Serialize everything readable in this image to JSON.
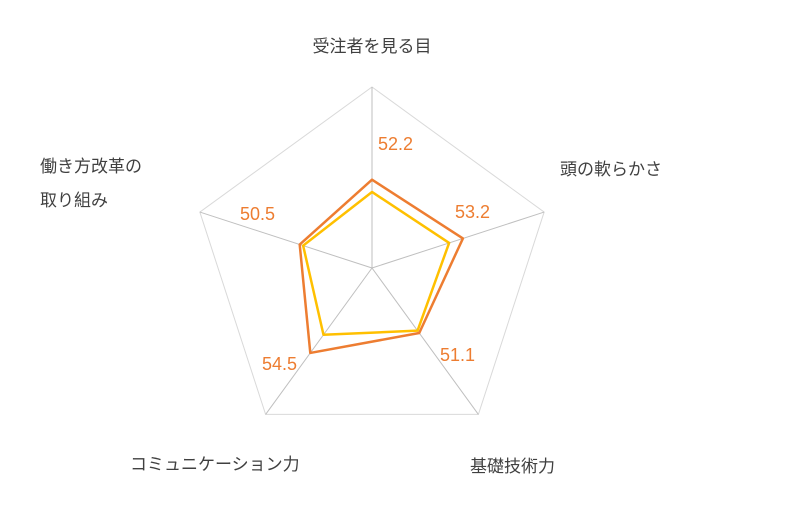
{
  "chart_data": {
    "type": "radar",
    "title": "",
    "axes": [
      [
        "受注者を見る目"
      ],
      [
        "頭の軟らかさ"
      ],
      [
        "基礎技術力"
      ],
      [
        "コミュニケーション力"
      ],
      [
        "働き方改革の",
        "取り組み"
      ]
    ],
    "series": [
      {
        "values": [
          52.2,
          53.2,
          51.1,
          54.5,
          50.5
        ],
        "color": "#ED7D31",
        "data_labels": [
          "52.2",
          "53.2",
          "51.1",
          "54.5",
          "50.5"
        ]
      },
      {
        "values": [
          50.5,
          51.2,
          50.7,
          51.4,
          50.0
        ],
        "color": "#FFC000"
      }
    ],
    "rlim": [
      40,
      65
    ],
    "grid": true,
    "legend": "none",
    "colors": {
      "grid": "#d9d9d9",
      "axis_text": "#404040",
      "label": "#ED7D31"
    }
  }
}
